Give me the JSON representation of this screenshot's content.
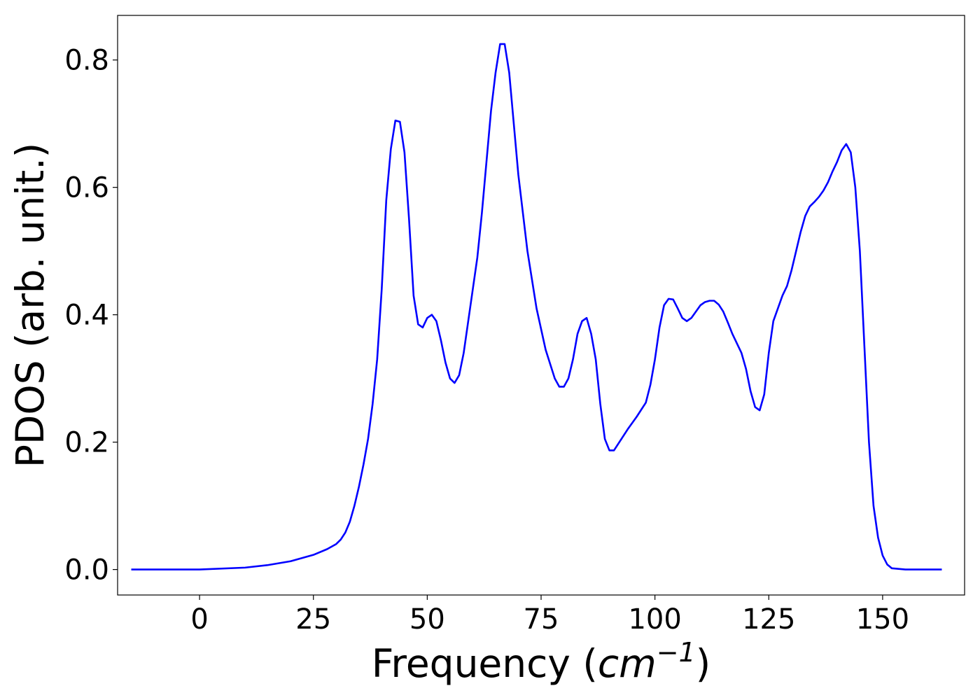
{
  "chart_data": {
    "type": "line",
    "title": "",
    "xlabel": "Frequency",
    "xlabel_unit_base": "cm",
    "xlabel_unit_exp": "−1",
    "ylabel": "PDOS (arb. unit.)",
    "xlim": [
      -18,
      168
    ],
    "ylim": [
      -0.04,
      0.87
    ],
    "xticks": [
      0,
      25,
      50,
      75,
      100,
      125,
      150
    ],
    "xtick_labels": [
      "0",
      "25",
      "50",
      "75",
      "100",
      "125",
      "150"
    ],
    "yticks": [
      0.0,
      0.2,
      0.4,
      0.6,
      0.8
    ],
    "ytick_labels": [
      "0.0",
      "0.2",
      "0.4",
      "0.6",
      "0.8"
    ],
    "grid": false,
    "line_color": "#0000ff",
    "series": [
      {
        "x": [
          -15,
          0,
          10,
          15,
          20,
          25,
          28,
          30,
          31,
          32,
          33,
          34,
          35,
          36,
          37,
          38,
          39,
          40,
          41,
          42,
          43,
          44,
          45,
          46,
          47,
          48,
          49,
          50,
          51,
          52,
          53,
          54,
          55,
          56,
          57,
          58,
          59,
          60,
          61,
          62,
          63,
          64,
          65,
          66,
          67,
          68,
          69,
          70,
          72,
          74,
          76,
          78,
          79,
          80,
          81,
          82,
          83,
          84,
          85,
          86,
          87,
          88,
          89,
          90,
          91,
          92,
          94,
          96,
          98,
          99,
          100,
          101,
          102,
          103,
          104,
          105,
          106,
          107,
          108,
          109,
          110,
          111,
          112,
          113,
          114,
          115,
          116,
          117,
          118,
          119,
          120,
          121,
          122,
          123,
          124,
          125,
          126,
          127,
          128,
          129,
          130,
          131,
          132,
          133,
          134,
          135,
          136,
          137,
          138,
          139,
          140,
          141,
          142,
          143,
          144,
          145,
          146,
          147,
          148,
          149,
          150,
          151,
          152,
          155,
          163
        ],
        "y": [
          0.0,
          0.0,
          0.003,
          0.007,
          0.013,
          0.023,
          0.032,
          0.04,
          0.047,
          0.058,
          0.075,
          0.1,
          0.13,
          0.165,
          0.205,
          0.26,
          0.33,
          0.44,
          0.58,
          0.66,
          0.705,
          0.703,
          0.655,
          0.55,
          0.43,
          0.385,
          0.38,
          0.395,
          0.4,
          0.39,
          0.36,
          0.325,
          0.3,
          0.293,
          0.305,
          0.34,
          0.39,
          0.44,
          0.49,
          0.56,
          0.64,
          0.72,
          0.78,
          0.825,
          0.825,
          0.78,
          0.7,
          0.62,
          0.5,
          0.41,
          0.345,
          0.3,
          0.287,
          0.287,
          0.3,
          0.33,
          0.37,
          0.39,
          0.395,
          0.37,
          0.33,
          0.26,
          0.205,
          0.187,
          0.187,
          0.198,
          0.22,
          0.24,
          0.262,
          0.29,
          0.33,
          0.38,
          0.415,
          0.425,
          0.424,
          0.41,
          0.395,
          0.39,
          0.395,
          0.405,
          0.415,
          0.42,
          0.422,
          0.422,
          0.416,
          0.405,
          0.388,
          0.37,
          0.355,
          0.34,
          0.315,
          0.28,
          0.255,
          0.25,
          0.275,
          0.34,
          0.39,
          0.41,
          0.43,
          0.445,
          0.47,
          0.5,
          0.53,
          0.555,
          0.57,
          0.577,
          0.585,
          0.595,
          0.608,
          0.625,
          0.64,
          0.658,
          0.668,
          0.655,
          0.6,
          0.5,
          0.35,
          0.2,
          0.1,
          0.05,
          0.022,
          0.008,
          0.002,
          0.0,
          0.0
        ]
      }
    ]
  }
}
